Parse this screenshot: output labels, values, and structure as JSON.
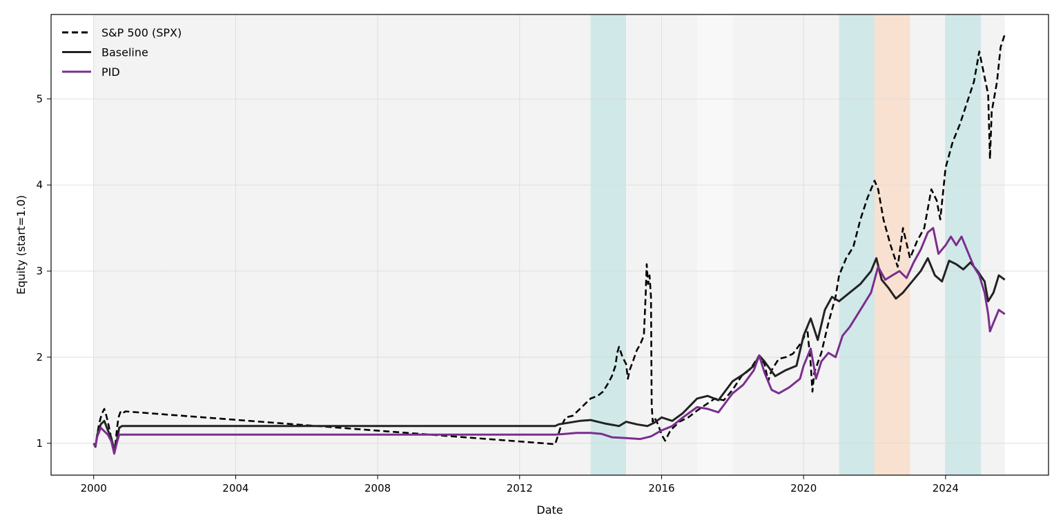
{
  "chart_data": {
    "type": "line",
    "title": "",
    "xlabel": "Date",
    "ylabel": "Equity (start=1.0)",
    "xlim": [
      1998.8,
      2026.9
    ],
    "ylim": [
      0.63,
      5.98
    ],
    "x_ticks": [
      2000,
      2004,
      2008,
      2012,
      2016,
      2020,
      2024
    ],
    "x_tick_labels": [
      "2000",
      "2004",
      "2008",
      "2012",
      "2016",
      "2020",
      "2024"
    ],
    "y_ticks": [
      1,
      2,
      3,
      4,
      5
    ],
    "y_tick_labels": [
      "1",
      "2",
      "3",
      "4",
      "5"
    ],
    "grid": true,
    "legend_position": "top-left",
    "regime_bands": [
      {
        "start": 2000.0,
        "end": 2001.0,
        "regime": "neutral",
        "color": "#f3f3f3"
      },
      {
        "start": 2001.0,
        "end": 2002.0,
        "regime": "neutral",
        "color": "#f3f3f3"
      },
      {
        "start": 2002.0,
        "end": 2009.0,
        "regime": "neutral",
        "color": "#f3f3f3"
      },
      {
        "start": 2009.0,
        "end": 2014.0,
        "regime": "neutral",
        "color": "#f3f3f3"
      },
      {
        "start": 2014.0,
        "end": 2015.0,
        "regime": "bull",
        "color": "#d0e8e8"
      },
      {
        "start": 2015.0,
        "end": 2017.0,
        "regime": "neutral",
        "color": "#f3f3f3"
      },
      {
        "start": 2017.0,
        "end": 2018.0,
        "regime": "calm",
        "color": "#f8f8f8"
      },
      {
        "start": 2018.0,
        "end": 2021.0,
        "regime": "neutral",
        "color": "#f3f3f3"
      },
      {
        "start": 2021.0,
        "end": 2022.0,
        "regime": "bull",
        "color": "#d0e8e8"
      },
      {
        "start": 2022.0,
        "end": 2023.0,
        "regime": "bear",
        "color": "#f8e1d1"
      },
      {
        "start": 2023.0,
        "end": 2024.0,
        "regime": "neutral",
        "color": "#f3f3f3"
      },
      {
        "start": 2024.0,
        "end": 2025.0,
        "regime": "bull",
        "color": "#d0e8e8"
      },
      {
        "start": 2025.0,
        "end": 2025.67,
        "regime": "neutral",
        "color": "#f3f3f3"
      }
    ],
    "series": [
      {
        "name": "S&P 500 (SPX)",
        "color": "#000000",
        "style": "dashed",
        "points": [
          [
            2000.0,
            1.0
          ],
          [
            2000.05,
            0.96
          ],
          [
            2000.1,
            1.1
          ],
          [
            2000.15,
            1.22
          ],
          [
            2000.2,
            1.3
          ],
          [
            2000.25,
            1.36
          ],
          [
            2000.3,
            1.4
          ],
          [
            2000.35,
            1.33
          ],
          [
            2000.4,
            1.25
          ],
          [
            2000.45,
            1.15
          ],
          [
            2000.5,
            1.05
          ],
          [
            2000.55,
            0.98
          ],
          [
            2000.58,
            0.88
          ],
          [
            2000.62,
            1.02
          ],
          [
            2000.66,
            1.18
          ],
          [
            2000.7,
            1.3
          ],
          [
            2000.75,
            1.36
          ],
          [
            2000.8,
            1.38
          ],
          [
            2000.85,
            1.36
          ],
          [
            2000.9,
            1.37
          ],
          [
            2013.0,
            0.99
          ],
          [
            2013.05,
            1.05
          ],
          [
            2013.15,
            1.18
          ],
          [
            2013.3,
            1.3
          ],
          [
            2013.5,
            1.32
          ],
          [
            2013.7,
            1.4
          ],
          [
            2013.85,
            1.46
          ],
          [
            2014.0,
            1.52
          ],
          [
            2014.2,
            1.55
          ],
          [
            2014.35,
            1.6
          ],
          [
            2014.5,
            1.7
          ],
          [
            2014.6,
            1.78
          ],
          [
            2014.7,
            1.9
          ],
          [
            2014.75,
            2.05
          ],
          [
            2014.8,
            2.12
          ],
          [
            2014.9,
            2.0
          ],
          [
            2015.0,
            1.92
          ],
          [
            2015.05,
            1.75
          ],
          [
            2015.1,
            1.85
          ],
          [
            2015.2,
            1.96
          ],
          [
            2015.3,
            2.08
          ],
          [
            2015.4,
            2.15
          ],
          [
            2015.5,
            2.25
          ],
          [
            2015.55,
            2.7
          ],
          [
            2015.58,
            3.08
          ],
          [
            2015.62,
            2.85
          ],
          [
            2015.66,
            2.95
          ],
          [
            2015.7,
            2.7
          ],
          [
            2015.72,
            1.45
          ],
          [
            2015.75,
            1.25
          ],
          [
            2015.8,
            1.3
          ],
          [
            2015.9,
            1.22
          ],
          [
            2016.0,
            1.1
          ],
          [
            2016.1,
            1.03
          ],
          [
            2016.25,
            1.15
          ],
          [
            2016.5,
            1.25
          ],
          [
            2016.75,
            1.3
          ],
          [
            2017.0,
            1.38
          ],
          [
            2017.25,
            1.45
          ],
          [
            2017.5,
            1.52
          ],
          [
            2017.75,
            1.5
          ],
          [
            2018.0,
            1.62
          ],
          [
            2018.25,
            1.78
          ],
          [
            2018.5,
            1.86
          ],
          [
            2018.75,
            2.02
          ],
          [
            2018.9,
            1.92
          ],
          [
            2019.0,
            1.72
          ],
          [
            2019.1,
            1.85
          ],
          [
            2019.3,
            1.98
          ],
          [
            2019.5,
            2.0
          ],
          [
            2019.7,
            2.04
          ],
          [
            2019.9,
            2.15
          ],
          [
            2020.0,
            2.22
          ],
          [
            2020.1,
            2.35
          ],
          [
            2020.2,
            1.92
          ],
          [
            2020.25,
            1.6
          ],
          [
            2020.3,
            1.82
          ],
          [
            2020.5,
            2.05
          ],
          [
            2020.7,
            2.4
          ],
          [
            2020.9,
            2.7
          ],
          [
            2021.0,
            2.95
          ],
          [
            2021.2,
            3.15
          ],
          [
            2021.4,
            3.28
          ],
          [
            2021.6,
            3.6
          ],
          [
            2021.8,
            3.85
          ],
          [
            2022.0,
            4.05
          ],
          [
            2022.1,
            3.95
          ],
          [
            2022.25,
            3.6
          ],
          [
            2022.45,
            3.3
          ],
          [
            2022.65,
            3.05
          ],
          [
            2022.8,
            3.5
          ],
          [
            2023.0,
            3.15
          ],
          [
            2023.2,
            3.35
          ],
          [
            2023.4,
            3.5
          ],
          [
            2023.6,
            3.95
          ],
          [
            2023.75,
            3.82
          ],
          [
            2023.85,
            3.6
          ],
          [
            2024.0,
            4.2
          ],
          [
            2024.2,
            4.5
          ],
          [
            2024.4,
            4.7
          ],
          [
            2024.6,
            4.95
          ],
          [
            2024.8,
            5.2
          ],
          [
            2024.95,
            5.55
          ],
          [
            2025.05,
            5.35
          ],
          [
            2025.2,
            5.05
          ],
          [
            2025.25,
            4.3
          ],
          [
            2025.3,
            4.85
          ],
          [
            2025.45,
            5.2
          ],
          [
            2025.55,
            5.6
          ],
          [
            2025.67,
            5.75
          ]
        ]
      },
      {
        "name": "Baseline",
        "color": "#222222",
        "style": "solid",
        "points": [
          [
            2000.0,
            1.0
          ],
          [
            2000.05,
            0.96
          ],
          [
            2000.1,
            1.1
          ],
          [
            2000.2,
            1.22
          ],
          [
            2000.3,
            1.26
          ],
          [
            2000.4,
            1.15
          ],
          [
            2000.5,
            1.06
          ],
          [
            2000.58,
            0.9
          ],
          [
            2000.65,
            1.02
          ],
          [
            2000.72,
            1.18
          ],
          [
            2000.8,
            1.2
          ],
          [
            2013.0,
            1.2
          ],
          [
            2013.1,
            1.22
          ],
          [
            2013.4,
            1.24
          ],
          [
            2013.7,
            1.26
          ],
          [
            2014.0,
            1.27
          ],
          [
            2014.4,
            1.23
          ],
          [
            2014.8,
            1.2
          ],
          [
            2015.0,
            1.25
          ],
          [
            2015.3,
            1.22
          ],
          [
            2015.6,
            1.2
          ],
          [
            2015.8,
            1.24
          ],
          [
            2016.0,
            1.3
          ],
          [
            2016.3,
            1.26
          ],
          [
            2016.6,
            1.35
          ],
          [
            2017.0,
            1.52
          ],
          [
            2017.3,
            1.55
          ],
          [
            2017.6,
            1.5
          ],
          [
            2018.0,
            1.72
          ],
          [
            2018.3,
            1.8
          ],
          [
            2018.6,
            1.9
          ],
          [
            2018.75,
            2.02
          ],
          [
            2018.9,
            1.95
          ],
          [
            2019.2,
            1.78
          ],
          [
            2019.5,
            1.85
          ],
          [
            2019.8,
            1.9
          ],
          [
            2020.0,
            2.25
          ],
          [
            2020.2,
            2.45
          ],
          [
            2020.4,
            2.2
          ],
          [
            2020.6,
            2.55
          ],
          [
            2020.8,
            2.7
          ],
          [
            2021.0,
            2.65
          ],
          [
            2021.3,
            2.75
          ],
          [
            2021.6,
            2.85
          ],
          [
            2021.9,
            3.0
          ],
          [
            2022.05,
            3.15
          ],
          [
            2022.2,
            2.9
          ],
          [
            2022.4,
            2.8
          ],
          [
            2022.6,
            2.68
          ],
          [
            2022.8,
            2.75
          ],
          [
            2023.0,
            2.85
          ],
          [
            2023.3,
            3.0
          ],
          [
            2023.5,
            3.15
          ],
          [
            2023.7,
            2.95
          ],
          [
            2023.9,
            2.88
          ],
          [
            2024.1,
            3.12
          ],
          [
            2024.3,
            3.08
          ],
          [
            2024.5,
            3.02
          ],
          [
            2024.7,
            3.1
          ],
          [
            2024.9,
            3.0
          ],
          [
            2025.1,
            2.88
          ],
          [
            2025.2,
            2.65
          ],
          [
            2025.35,
            2.75
          ],
          [
            2025.5,
            2.95
          ],
          [
            2025.67,
            2.9
          ]
        ]
      },
      {
        "name": "PID",
        "color": "#7b2d8e",
        "style": "solid",
        "points": [
          [
            2000.0,
            1.0
          ],
          [
            2000.05,
            0.97
          ],
          [
            2000.1,
            1.08
          ],
          [
            2000.2,
            1.18
          ],
          [
            2000.3,
            1.14
          ],
          [
            2000.4,
            1.1
          ],
          [
            2000.5,
            1.02
          ],
          [
            2000.58,
            0.88
          ],
          [
            2000.65,
            1.0
          ],
          [
            2000.72,
            1.1
          ],
          [
            2013.0,
            1.1
          ],
          [
            2013.3,
            1.11
          ],
          [
            2013.6,
            1.12
          ],
          [
            2014.0,
            1.12
          ],
          [
            2014.3,
            1.11
          ],
          [
            2014.6,
            1.07
          ],
          [
            2015.0,
            1.06
          ],
          [
            2015.4,
            1.05
          ],
          [
            2015.7,
            1.08
          ],
          [
            2016.0,
            1.15
          ],
          [
            2016.3,
            1.2
          ],
          [
            2016.6,
            1.3
          ],
          [
            2017.0,
            1.42
          ],
          [
            2017.3,
            1.4
          ],
          [
            2017.6,
            1.36
          ],
          [
            2018.0,
            1.58
          ],
          [
            2018.3,
            1.68
          ],
          [
            2018.6,
            1.85
          ],
          [
            2018.75,
            2.02
          ],
          [
            2018.9,
            1.82
          ],
          [
            2019.1,
            1.62
          ],
          [
            2019.3,
            1.58
          ],
          [
            2019.6,
            1.65
          ],
          [
            2019.9,
            1.75
          ],
          [
            2020.0,
            1.9
          ],
          [
            2020.2,
            2.1
          ],
          [
            2020.35,
            1.75
          ],
          [
            2020.5,
            1.95
          ],
          [
            2020.7,
            2.05
          ],
          [
            2020.9,
            2.0
          ],
          [
            2021.1,
            2.25
          ],
          [
            2021.3,
            2.35
          ],
          [
            2021.6,
            2.55
          ],
          [
            2021.9,
            2.75
          ],
          [
            2022.0,
            2.9
          ],
          [
            2022.1,
            3.05
          ],
          [
            2022.3,
            2.9
          ],
          [
            2022.5,
            2.95
          ],
          [
            2022.7,
            3.0
          ],
          [
            2022.9,
            2.92
          ],
          [
            2023.1,
            3.1
          ],
          [
            2023.3,
            3.25
          ],
          [
            2023.5,
            3.45
          ],
          [
            2023.65,
            3.5
          ],
          [
            2023.8,
            3.2
          ],
          [
            2024.0,
            3.3
          ],
          [
            2024.15,
            3.4
          ],
          [
            2024.3,
            3.3
          ],
          [
            2024.45,
            3.4
          ],
          [
            2024.6,
            3.25
          ],
          [
            2024.8,
            3.05
          ],
          [
            2024.95,
            2.95
          ],
          [
            2025.1,
            2.75
          ],
          [
            2025.2,
            2.5
          ],
          [
            2025.25,
            2.3
          ],
          [
            2025.35,
            2.4
          ],
          [
            2025.5,
            2.55
          ],
          [
            2025.67,
            2.5
          ]
        ]
      }
    ]
  }
}
